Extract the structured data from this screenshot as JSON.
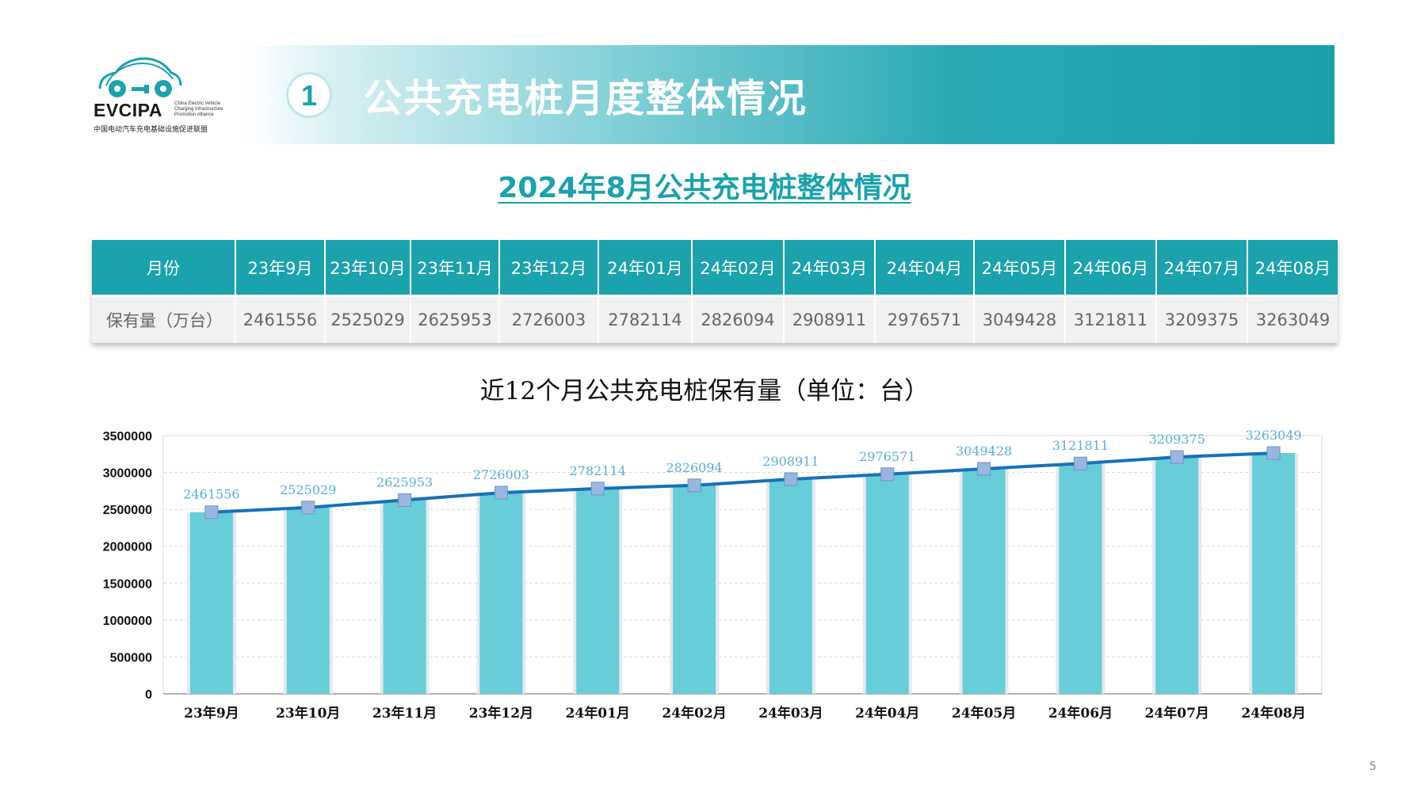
{
  "logo": {
    "brand": "EVCIPA",
    "sub_en": [
      "China Electric Vehicle",
      "Charging Infrastructure",
      "Promotion Alliance"
    ],
    "sub_cn": "中国电动汽车充电基础设施促进联盟"
  },
  "banner": {
    "number": "1",
    "title": "公共充电桩月度整体情况"
  },
  "subtitle": "2024年8月公共充电桩整体情况",
  "table": {
    "header_label": "月份",
    "row_label": "保有量（万台）",
    "months": [
      "23年9月",
      "23年10月",
      "23年11月",
      "23年12月",
      "24年01月",
      "24年02月",
      "24年03月",
      "24年04月",
      "24年05月",
      "24年06月",
      "24年07月",
      "24年08月"
    ],
    "values": [
      "2461556",
      "2525029",
      "2625953",
      "2726003",
      "2782114",
      "2826094",
      "2908911",
      "2976571",
      "3049428",
      "3121811",
      "3209375",
      "3263049"
    ]
  },
  "chart_title": "近12个月公共充电桩保有量（单位：台）",
  "chart_data": {
    "type": "bar",
    "categories": [
      "23年9月",
      "23年10月",
      "23年11月",
      "23年12月",
      "24年01月",
      "24年02月",
      "24年03月",
      "24年04月",
      "24年05月",
      "24年06月",
      "24年07月",
      "24年08月"
    ],
    "series": [
      {
        "values": [
          2461556,
          2525029,
          2625953,
          2726003,
          2782114,
          2826094,
          2908911,
          2976571,
          3049428,
          3121811,
          3209375,
          3263049
        ],
        "render": "bar",
        "color": "#67cdd8"
      },
      {
        "values": [
          2461556,
          2525029,
          2625953,
          2726003,
          2782114,
          2826094,
          2908911,
          2976571,
          3049428,
          3121811,
          3209375,
          3263049
        ],
        "render": "line",
        "color": "#1770b8"
      }
    ],
    "yticks": [
      "0",
      "500000",
      "1000000",
      "1500000",
      "2000000",
      "2500000",
      "3000000",
      "3500000"
    ],
    "ylim": [
      0,
      3500000
    ],
    "grid": true,
    "label_color": "#5aaed6"
  },
  "page_number": "5"
}
